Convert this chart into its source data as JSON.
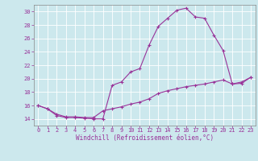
{
  "xlabel": "Windchill (Refroidissement éolien,°C)",
  "bg_color": "#cce8ed",
  "line_color": "#993399",
  "marker": "+",
  "xlim": [
    -0.5,
    23.5
  ],
  "ylim": [
    13.0,
    31.0
  ],
  "yticks": [
    14,
    16,
    18,
    20,
    22,
    24,
    26,
    28,
    30
  ],
  "xticks": [
    0,
    1,
    2,
    3,
    4,
    5,
    6,
    7,
    8,
    9,
    10,
    11,
    12,
    13,
    14,
    15,
    16,
    17,
    18,
    19,
    20,
    21,
    22,
    23
  ],
  "series": [
    [
      0,
      16.0
    ],
    [
      1,
      15.5
    ],
    [
      2,
      14.5
    ],
    [
      3,
      14.2
    ],
    [
      4,
      14.2
    ],
    [
      5,
      14.1
    ],
    [
      6,
      14.0
    ],
    [
      7,
      14.0
    ],
    [
      8,
      19.0
    ],
    [
      9,
      19.5
    ],
    [
      10,
      21.0
    ],
    [
      11,
      21.5
    ],
    [
      12,
      25.0
    ],
    [
      13,
      27.8
    ],
    [
      14,
      29.0
    ],
    [
      15,
      30.2
    ],
    [
      16,
      30.5
    ],
    [
      17,
      29.2
    ],
    [
      18,
      29.0
    ],
    [
      19,
      26.5
    ],
    [
      20,
      24.2
    ],
    [
      21,
      19.2
    ],
    [
      22,
      19.5
    ],
    [
      23,
      20.2
    ]
  ],
  "series2": [
    [
      0,
      16.0
    ],
    [
      1,
      15.5
    ],
    [
      2,
      14.7
    ],
    [
      3,
      14.3
    ],
    [
      4,
      14.3
    ],
    [
      5,
      14.2
    ],
    [
      6,
      14.2
    ],
    [
      7,
      15.2
    ],
    [
      8,
      15.5
    ],
    [
      9,
      15.8
    ],
    [
      10,
      16.2
    ],
    [
      11,
      16.5
    ],
    [
      12,
      17.0
    ],
    [
      13,
      17.8
    ],
    [
      14,
      18.2
    ],
    [
      15,
      18.5
    ],
    [
      16,
      18.8
    ],
    [
      17,
      19.0
    ],
    [
      18,
      19.2
    ],
    [
      19,
      19.5
    ],
    [
      20,
      19.8
    ],
    [
      21,
      19.2
    ],
    [
      22,
      19.3
    ],
    [
      23,
      20.2
    ]
  ]
}
